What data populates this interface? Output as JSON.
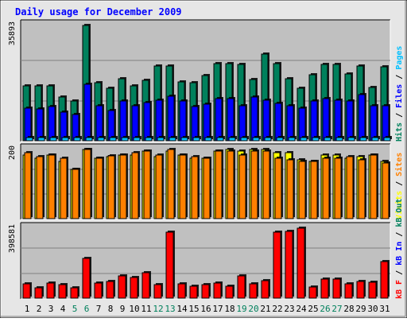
{
  "title": "Daily usage for December 2009",
  "colors": {
    "page_bg": "#E6E6E6",
    "plot_bg": "#C0C0C0",
    "title": "#0000FF",
    "hits": "#00805C",
    "files": "#0000FF",
    "pages": "#00C0FF",
    "visits": "#FFFF00",
    "sites": "#FF8000",
    "kbin": "#0000FF",
    "kbout": "#00805C",
    "kbf": "#FF0000",
    "weekend_day": "#00805C"
  },
  "chart_data": [
    {
      "type": "bar",
      "name": "hits-files-pages",
      "ymax": 35893,
      "ymax_label": "35893",
      "legend": [
        {
          "key": "hits",
          "label": "Hits"
        },
        {
          "key": "files",
          "label": "Files"
        },
        {
          "key": "pages",
          "label": "Pages"
        }
      ],
      "separators": [
        " / ",
        " / "
      ],
      "categories": [
        "1",
        "2",
        "3",
        "4",
        "5",
        "6",
        "7",
        "8",
        "9",
        "10",
        "11",
        "12",
        "13",
        "14",
        "15",
        "16",
        "17",
        "18",
        "19",
        "20",
        "21",
        "22",
        "23",
        "24",
        "25",
        "26",
        "27",
        "28",
        "29",
        "30",
        "31"
      ],
      "series": [
        {
          "name": "Hits",
          "key": "hits",
          "values": [
            17100,
            17100,
            17100,
            13500,
            12300,
            36000,
            18000,
            16400,
            19300,
            17100,
            18900,
            23200,
            23200,
            18300,
            18000,
            20200,
            23900,
            23900,
            23700,
            19100,
            26900,
            23900,
            19300,
            16400,
            20600,
            23700,
            23700,
            20800,
            23200,
            16700,
            23000
          ]
        },
        {
          "name": "Files",
          "key": "files",
          "values": [
            10200,
            9900,
            10600,
            8800,
            8100,
            17500,
            11000,
            9400,
            12300,
            11000,
            11900,
            12700,
            13800,
            12300,
            10600,
            11300,
            13200,
            13200,
            11000,
            13500,
            12700,
            11700,
            11000,
            10100,
            12300,
            13000,
            12700,
            12300,
            14300,
            10800,
            10800
          ]
        },
        {
          "name": "Pages",
          "key": "pages",
          "values": [
            900,
            900,
            900,
            900,
            900,
            900,
            900,
            900,
            900,
            900,
            900,
            900,
            900,
            900,
            900,
            900,
            900,
            900,
            900,
            900,
            900,
            900,
            900,
            900,
            900,
            900,
            900,
            900,
            900,
            900,
            900
          ]
        }
      ]
    },
    {
      "type": "bar",
      "name": "visits-sites",
      "ymax": 200,
      "ymax_label": "200",
      "legend": [
        {
          "key": "visits",
          "label": "Visits"
        },
        {
          "key": "sites",
          "label": "Sites"
        }
      ],
      "separators": [
        " / "
      ],
      "categories": [
        "1",
        "2",
        "3",
        "4",
        "5",
        "6",
        "7",
        "8",
        "9",
        "10",
        "11",
        "12",
        "13",
        "14",
        "15",
        "16",
        "17",
        "18",
        "19",
        "20",
        "21",
        "22",
        "23",
        "24",
        "25",
        "26",
        "27",
        "28",
        "29",
        "30",
        "31"
      ],
      "series": [
        {
          "name": "Visits",
          "key": "visits",
          "values": [
            185,
            175,
            185,
            165,
            143,
            200,
            175,
            180,
            185,
            185,
            195,
            180,
            195,
            185,
            175,
            175,
            195,
            200,
            195,
            200,
            200,
            190,
            190,
            170,
            165,
            185,
            185,
            175,
            180,
            185,
            165
          ]
        },
        {
          "name": "Sites",
          "key": "sites",
          "values": [
            190,
            180,
            185,
            175,
            143,
            200,
            175,
            182,
            185,
            190,
            195,
            185,
            200,
            185,
            180,
            175,
            195,
            195,
            185,
            195,
            195,
            175,
            170,
            165,
            165,
            175,
            175,
            180,
            170,
            185,
            160
          ]
        }
      ]
    },
    {
      "type": "bar",
      "name": "kbytes",
      "ymax": 398581,
      "ymax_label": "398581",
      "legend": [
        {
          "key": "kbf",
          "label": "kB F"
        },
        {
          "key": "kbin",
          "label": "kB In"
        },
        {
          "key": "kbout",
          "label": "kB Out"
        }
      ],
      "separators": [
        " / ",
        " / "
      ],
      "categories": [
        "1",
        "2",
        "3",
        "4",
        "5",
        "6",
        "7",
        "8",
        "9",
        "10",
        "11",
        "12",
        "13",
        "14",
        "15",
        "16",
        "17",
        "18",
        "19",
        "20",
        "21",
        "22",
        "23",
        "24",
        "25",
        "26",
        "27",
        "28",
        "29",
        "30",
        "31"
      ],
      "series": [
        {
          "name": "kB F",
          "key": "kbf",
          "values": [
            80000,
            60000,
            85000,
            75000,
            60000,
            225000,
            85000,
            95000,
            125000,
            120000,
            145000,
            75000,
            375000,
            80000,
            70000,
            75000,
            85000,
            70000,
            125000,
            80000,
            100000,
            375000,
            380000,
            400000,
            65000,
            110000,
            110000,
            80000,
            95000,
            90000,
            210000
          ]
        }
      ]
    }
  ],
  "days": [
    "1",
    "2",
    "3",
    "4",
    "5",
    "6",
    "7",
    "8",
    "9",
    "10",
    "11",
    "12",
    "13",
    "14",
    "15",
    "16",
    "17",
    "18",
    "19",
    "20",
    "21",
    "22",
    "23",
    "24",
    "25",
    "26",
    "27",
    "28",
    "29",
    "30",
    "31"
  ],
  "weekend_days": [
    5,
    6,
    12,
    13,
    19,
    20,
    26,
    27
  ]
}
